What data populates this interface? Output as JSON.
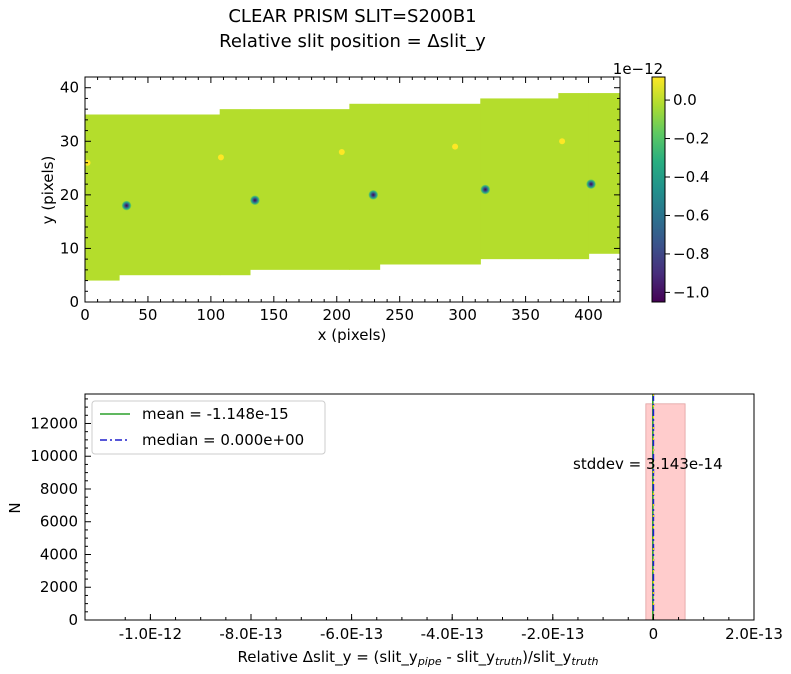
{
  "figure": {
    "title_line1": "CLEAR   PRISM   SLIT=S200B1",
    "title_line2": "Relative slit position = Δslit_y"
  },
  "chart_data": [
    {
      "type": "heatmap",
      "xlabel": "x (pixels)",
      "ylabel": "y (pixels)",
      "xlim": [
        0,
        425
      ],
      "ylim": [
        0,
        42
      ],
      "xticks": [
        0,
        50,
        100,
        150,
        200,
        250,
        300,
        350,
        400
      ],
      "yticks": [
        0,
        10,
        20,
        30,
        40
      ],
      "background_value": 0.0,
      "slit_segments": [
        {
          "x": [
            0,
            27
          ],
          "y": [
            4,
            35
          ]
        },
        {
          "x": [
            27,
            107
          ],
          "y": [
            5,
            35
          ]
        },
        {
          "x": [
            107,
            131
          ],
          "y": [
            5,
            36
          ]
        },
        {
          "x": [
            131,
            210
          ],
          "y": [
            6,
            36
          ]
        },
        {
          "x": [
            210,
            234
          ],
          "y": [
            6,
            37
          ]
        },
        {
          "x": [
            234,
            314
          ],
          "y": [
            7,
            37
          ]
        },
        {
          "x": [
            314,
            376
          ],
          "y": [
            8,
            38
          ]
        },
        {
          "x": [
            376,
            400
          ],
          "y": [
            8,
            39
          ]
        },
        {
          "x": [
            400,
            425
          ],
          "y": [
            9,
            39
          ]
        }
      ],
      "negative_spots": [
        {
          "x": 33,
          "y": 18,
          "value": -1.0
        },
        {
          "x": 135,
          "y": 19,
          "value": -0.9
        },
        {
          "x": 229,
          "y": 20,
          "value": -0.8
        },
        {
          "x": 318,
          "y": 21,
          "value": -0.75
        },
        {
          "x": 402,
          "y": 22,
          "value": -0.7
        }
      ],
      "positive_spots": [
        {
          "x": 2,
          "y": 26,
          "value": 0.1
        },
        {
          "x": 108,
          "y": 27,
          "value": 0.1
        },
        {
          "x": 204,
          "y": 28,
          "value": 0.1
        },
        {
          "x": 294,
          "y": 29,
          "value": 0.1
        },
        {
          "x": 379,
          "y": 30,
          "value": 0.1
        }
      ],
      "colorbar": {
        "colormap": "viridis",
        "exponent_label": "1e−12",
        "range": [
          -1.05,
          0.12
        ],
        "ticks": [
          0.0,
          -0.2,
          -0.4,
          -0.6,
          -0.8,
          -1.0
        ],
        "tick_labels": [
          "0.0",
          "−0.2",
          "−0.4",
          "−0.6",
          "−0.8",
          "−1.0"
        ]
      }
    },
    {
      "type": "bar",
      "subtype": "histogram",
      "xlabel_prefix": "Relative Δslit_y = (slit_y",
      "xlabel_sub1": "pipe",
      "xlabel_mid": " - slit_y",
      "xlabel_sub2": "truth",
      "xlabel_mid2": ")/slit_y",
      "xlabel_sub3": "truth",
      "ylabel": "N",
      "xlim": [
        -1.13e-12,
        2e-13
      ],
      "ylim": [
        0,
        13800
      ],
      "xticks": [
        -1e-12,
        -8e-13,
        -6e-13,
        -4e-13,
        -2e-13,
        0,
        2e-13
      ],
      "xtick_labels": [
        "-1.0E-12",
        "-8.0E-13",
        "-6.0E-13",
        "-4.0E-13",
        "-2.0E-13",
        "0",
        "2.0E-13"
      ],
      "yticks": [
        0,
        2000,
        4000,
        6000,
        8000,
        10000,
        12000
      ],
      "ytick_labels": [
        "0",
        "2000",
        "4000",
        "6000",
        "8000",
        "10000",
        "12000"
      ],
      "bins": [
        {
          "x0": -1.5e-14,
          "x1": 6.3e-14,
          "count": 13200
        }
      ],
      "bar_color": "#ffcccc",
      "mean": -1.148e-15,
      "median": 0.0,
      "legend": [
        {
          "label": "mean = -1.148e-15",
          "color": "#2ca02c",
          "style": "solid"
        },
        {
          "label": "median = 0.000e+00",
          "color": "#1f1fcc",
          "style": "dashdot"
        }
      ],
      "legend_position": "upper-left",
      "annotation": "stddev = 3.143e-14"
    }
  ]
}
